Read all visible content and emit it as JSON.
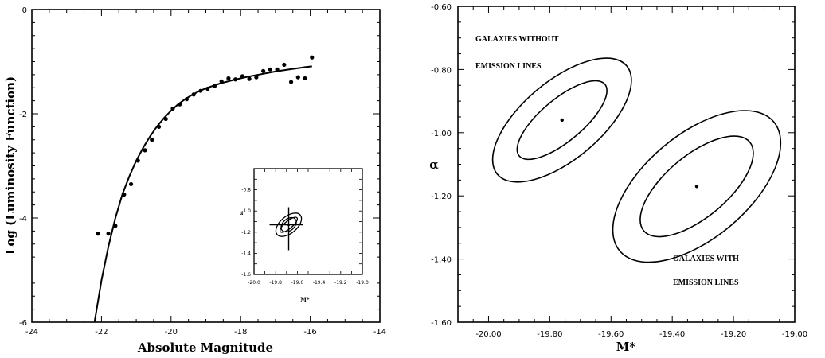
{
  "chart_data": [
    {
      "type": "scatter",
      "xlabel": "Absolute Magnitude",
      "ylabel": "Log (Luminosity Function)",
      "xlim": [
        -24,
        -14
      ],
      "ylim": [
        -6,
        0
      ],
      "x_ticks": [
        "-24",
        "-22",
        "-20",
        "-18",
        "-16",
        "-14"
      ],
      "y_ticks": [
        "-6",
        "-4",
        "-2",
        "0"
      ],
      "series": [
        {
          "points": [
            [
              -22.1,
              -4.3
            ],
            [
              -21.8,
              -4.3
            ],
            [
              -21.6,
              -4.15
            ],
            [
              -21.35,
              -3.55
            ],
            [
              -21.15,
              -3.35
            ],
            [
              -20.95,
              -2.9
            ],
            [
              -20.75,
              -2.7
            ],
            [
              -20.55,
              -2.5
            ],
            [
              -20.35,
              -2.25
            ],
            [
              -20.15,
              -2.1
            ],
            [
              -19.95,
              -1.9
            ],
            [
              -19.75,
              -1.82
            ],
            [
              -19.55,
              -1.72
            ],
            [
              -19.35,
              -1.63
            ],
            [
              -19.15,
              -1.56
            ],
            [
              -18.95,
              -1.52
            ],
            [
              -18.75,
              -1.47
            ],
            [
              -18.55,
              -1.38
            ],
            [
              -18.35,
              -1.32
            ],
            [
              -18.15,
              -1.34
            ],
            [
              -17.95,
              -1.28
            ],
            [
              -17.75,
              -1.33
            ],
            [
              -17.55,
              -1.3
            ],
            [
              -17.35,
              -1.18
            ],
            [
              -17.15,
              -1.15
            ],
            [
              -16.95,
              -1.15
            ],
            [
              -16.75,
              -1.06
            ],
            [
              -16.55,
              -1.39
            ],
            [
              -16.35,
              -1.3
            ],
            [
              -16.15,
              -1.32
            ],
            [
              -15.95,
              -0.92
            ]
          ]
        },
        {
          "type": "line",
          "points": [
            [
              -22.2,
              -6.0
            ],
            [
              -22.0,
              -5.2
            ],
            [
              -21.8,
              -4.55
            ],
            [
              -21.6,
              -4.0
            ],
            [
              -21.4,
              -3.55
            ],
            [
              -21.2,
              -3.2
            ],
            [
              -21.0,
              -2.9
            ],
            [
              -20.8,
              -2.65
            ],
            [
              -20.6,
              -2.43
            ],
            [
              -20.4,
              -2.24
            ],
            [
              -20.2,
              -2.08
            ],
            [
              -20.0,
              -1.94
            ],
            [
              -19.8,
              -1.82
            ],
            [
              -19.6,
              -1.72
            ],
            [
              -19.4,
              -1.64
            ],
            [
              -19.2,
              -1.57
            ],
            [
              -19.0,
              -1.51
            ],
            [
              -18.6,
              -1.42
            ],
            [
              -18.2,
              -1.35
            ],
            [
              -17.8,
              -1.29
            ],
            [
              -17.4,
              -1.24
            ],
            [
              -17.0,
              -1.19
            ],
            [
              -16.6,
              -1.15
            ],
            [
              -16.2,
              -1.11
            ],
            [
              -15.95,
              -1.09
            ]
          ]
        }
      ],
      "inset": {
        "xlabel": "M*",
        "ylabel": "α",
        "xlim": [
          -20.0,
          -19.0
        ],
        "ylim": [
          -1.6,
          -0.6
        ],
        "x_ticks": [
          "-20.0",
          "-19.8",
          "-19.6",
          "-19.4",
          "-19.2",
          "-19.0"
        ],
        "y_ticks": [
          "-0.8",
          "-1.0",
          "-1.2",
          "-1.4",
          "-1.6"
        ],
        "contours": [
          {
            "cx": -19.68,
            "cy": -1.13,
            "rx": 0.08,
            "ry": 0.055,
            "angle": -40
          },
          {
            "cx": -19.68,
            "cy": -1.13,
            "rx": 0.14,
            "ry": 0.08,
            "angle": -40
          },
          {
            "cx": -19.68,
            "cy": -1.13,
            "rx": 0.1,
            "ry": 0.035,
            "angle": -40
          }
        ],
        "best_fit": [
          -19.68,
          -1.13
        ]
      }
    },
    {
      "type": "contour",
      "xlabel": "M*",
      "ylabel": "α",
      "xlim": [
        -20.1,
        -19.0
      ],
      "ylim": [
        -1.6,
        -0.6
      ],
      "x_ticks": [
        "-20.00",
        "-19.80",
        "-19.60",
        "-19.40",
        "-19.20",
        "-19.00"
      ],
      "y_ticks": [
        "-0.60",
        "-0.80",
        "-1.00",
        "-1.20",
        "-1.40",
        "-1.60"
      ],
      "series": [
        {
          "name": "GALAXIES WITHOUT EMISSION LINES",
          "best_fit": [
            -19.76,
            -0.96
          ],
          "ellipses": [
            {
              "rx": 0.1825,
              "ry": 0.0665,
              "angle": -40
            },
            {
              "rx": 0.2756,
              "ry": 0.1239,
              "angle": -40
            }
          ]
        },
        {
          "name": "GALAXIES WITH EMISSION LINES",
          "best_fit": [
            -19.32,
            -1.17
          ],
          "ellipses": [
            {
              "rx": 0.2258,
              "ry": 0.0977,
              "angle": -40
            },
            {
              "rx": 0.3281,
              "ry": 0.1642,
              "angle": -40
            }
          ]
        }
      ],
      "annotations": [
        "GALAXIES WITHOUT",
        "EMISSION LINES",
        "GALAXIES WITH",
        "EMISSION LINES"
      ]
    }
  ]
}
